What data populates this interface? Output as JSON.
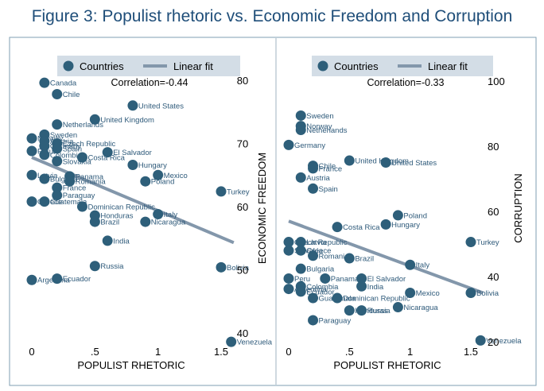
{
  "title": "Figure 3: Populist rhetoric vs. Economic Freedom and Corruption",
  "colors": {
    "marker": "#2e5f7a",
    "fit_line": "#8397ab",
    "legend_bg": "#d3dde6",
    "title": "#1f4e79"
  },
  "chart_data": [
    {
      "type": "scatter",
      "xlabel": "POPULIST RHETORIC",
      "ylabel": "ECONOMIC FREEDOM",
      "xlim": [
        -0.02,
        1.63
      ],
      "ylim": [
        38,
        83
      ],
      "xticks": [
        0,
        0.5,
        1,
        1.5
      ],
      "xtick_labels": [
        "0",
        ".5",
        "1",
        "1.5"
      ],
      "yticks": [
        40,
        50,
        60,
        70,
        80
      ],
      "ytick_labels": [
        "40",
        "50",
        "60",
        "70",
        "80"
      ],
      "legend": {
        "position": "top",
        "entries": [
          "Countries",
          "Linear fit"
        ]
      },
      "annotation": "Correlation=-0.44",
      "fit": {
        "x": [
          0,
          1.6
        ],
        "y": [
          67.8,
          54.3
        ]
      },
      "points": [
        {
          "label": "Canada",
          "x": 0.1,
          "y": 79.6
        },
        {
          "label": "Chile",
          "x": 0.2,
          "y": 77.8
        },
        {
          "label": "United States",
          "x": 0.8,
          "y": 76.0
        },
        {
          "label": "United Kingdom",
          "x": 0.5,
          "y": 73.8
        },
        {
          "label": "Netherlands",
          "x": 0.2,
          "y": 73.0
        },
        {
          "label": "Sweden",
          "x": 0.1,
          "y": 71.4
        },
        {
          "label": "Norway",
          "x": 0.0,
          "y": 70.8
        },
        {
          "label": "Austria",
          "x": 0.1,
          "y": 70.4
        },
        {
          "label": "Czech Republic",
          "x": 0.2,
          "y": 70.0
        },
        {
          "label": "Germany",
          "x": 0.1,
          "y": 69.6
        },
        {
          "label": "Spain",
          "x": 0.2,
          "y": 69.2
        },
        {
          "label": "Peru",
          "x": 0.0,
          "y": 68.8
        },
        {
          "label": "Colombia",
          "x": 0.1,
          "y": 68.2
        },
        {
          "label": "Slovakia",
          "x": 0.2,
          "y": 67.2
        },
        {
          "label": "El Salvador",
          "x": 0.6,
          "y": 68.6
        },
        {
          "label": "Costa Rica",
          "x": 0.4,
          "y": 67.8
        },
        {
          "label": "Hungary",
          "x": 0.8,
          "y": 66.6
        },
        {
          "label": "Mexico",
          "x": 1.0,
          "y": 65.0
        },
        {
          "label": "Poland",
          "x": 0.9,
          "y": 64.0
        },
        {
          "label": "Panama",
          "x": 0.3,
          "y": 64.8
        },
        {
          "label": "Latvia",
          "x": 0.0,
          "y": 65.0
        },
        {
          "label": "Bulgaria",
          "x": 0.1,
          "y": 64.4
        },
        {
          "label": "Romania",
          "x": 0.3,
          "y": 64.0
        },
        {
          "label": "France",
          "x": 0.2,
          "y": 63.0
        },
        {
          "label": "Paraguay",
          "x": 0.2,
          "y": 61.8
        },
        {
          "label": "Turkey",
          "x": 1.5,
          "y": 62.4
        },
        {
          "label": "Greece",
          "x": 0.0,
          "y": 60.8
        },
        {
          "label": "Guatemala",
          "x": 0.1,
          "y": 60.8
        },
        {
          "label": "Dominican Republic",
          "x": 0.4,
          "y": 60.0
        },
        {
          "label": "Honduras",
          "x": 0.5,
          "y": 58.6
        },
        {
          "label": "Italy",
          "x": 1.0,
          "y": 58.8
        },
        {
          "label": "Brazil",
          "x": 0.5,
          "y": 57.6
        },
        {
          "label": "Nicaragua",
          "x": 0.9,
          "y": 57.6
        },
        {
          "label": "India",
          "x": 0.6,
          "y": 54.6
        },
        {
          "label": "Russia",
          "x": 0.5,
          "y": 50.6
        },
        {
          "label": "Bolivia",
          "x": 1.5,
          "y": 50.4
        },
        {
          "label": "Argentina",
          "x": 0.0,
          "y": 48.4
        },
        {
          "label": "Ecuador",
          "x": 0.2,
          "y": 48.6
        },
        {
          "label": "Venezuela",
          "x": 1.58,
          "y": 38.6
        }
      ]
    },
    {
      "type": "scatter",
      "xlabel": "POPULIST RHETORIC",
      "ylabel": "CORRUPTION",
      "xlim": [
        -0.02,
        1.63
      ],
      "ylim": [
        18.5,
        104
      ],
      "xticks": [
        0,
        0.5,
        1,
        1.5
      ],
      "xtick_labels": [
        "0",
        ".5",
        "1",
        "1.5"
      ],
      "yticks": [
        20,
        40,
        60,
        80,
        100
      ],
      "ytick_labels": [
        "20",
        "40",
        "60",
        "80",
        "100"
      ],
      "legend": {
        "position": "top",
        "entries": [
          "Countries",
          "Linear fit"
        ]
      },
      "annotation": "Correlation=-0.33",
      "fit": {
        "x": [
          0,
          1.6
        ],
        "y": [
          57.0,
          35.0
        ]
      },
      "points": [
        {
          "label": "Sweden",
          "x": 0.1,
          "y": 89.4
        },
        {
          "label": "Norway",
          "x": 0.1,
          "y": 86.2
        },
        {
          "label": "Netherlands",
          "x": 0.1,
          "y": 85.0
        },
        {
          "label": "Germany",
          "x": 0.0,
          "y": 80.4
        },
        {
          "label": "United Kingdom",
          "x": 0.5,
          "y": 75.6
        },
        {
          "label": "United States",
          "x": 0.8,
          "y": 75.0
        },
        {
          "label": "Chile",
          "x": 0.2,
          "y": 74.0
        },
        {
          "label": "France",
          "x": 0.2,
          "y": 73.2
        },
        {
          "label": "Austria",
          "x": 0.1,
          "y": 70.4
        },
        {
          "label": "Spain",
          "x": 0.2,
          "y": 67.0
        },
        {
          "label": "Poland",
          "x": 0.9,
          "y": 58.8
        },
        {
          "label": "Hungary",
          "x": 0.8,
          "y": 56.0
        },
        {
          "label": "Costa Rica",
          "x": 0.4,
          "y": 55.2
        },
        {
          "label": "Czech Republic",
          "x": 0.0,
          "y": 50.6
        },
        {
          "label": "Latvia",
          "x": 0.1,
          "y": 50.6
        },
        {
          "label": "Slovakia",
          "x": 0.0,
          "y": 48.0
        },
        {
          "label": "Greece",
          "x": 0.1,
          "y": 48.0
        },
        {
          "label": "Turkey",
          "x": 1.5,
          "y": 50.6
        },
        {
          "label": "Romania",
          "x": 0.2,
          "y": 46.4
        },
        {
          "label": "Brazil",
          "x": 0.5,
          "y": 45.6
        },
        {
          "label": "Italy",
          "x": 1.0,
          "y": 43.6
        },
        {
          "label": "Bulgaria",
          "x": 0.1,
          "y": 42.4
        },
        {
          "label": "Peru",
          "x": 0.0,
          "y": 39.4
        },
        {
          "label": "Panama",
          "x": 0.3,
          "y": 39.4
        },
        {
          "label": "El Salvador",
          "x": 0.6,
          "y": 39.4
        },
        {
          "label": "Colombia",
          "x": 0.1,
          "y": 37.0
        },
        {
          "label": "India",
          "x": 0.6,
          "y": 37.0
        },
        {
          "label": "Argentina",
          "x": 0.0,
          "y": 36.2
        },
        {
          "label": "Ecuador",
          "x": 0.1,
          "y": 35.4
        },
        {
          "label": "Mexico",
          "x": 1.0,
          "y": 35.0
        },
        {
          "label": "Bolivia",
          "x": 1.5,
          "y": 35.0
        },
        {
          "label": "Guatemala",
          "x": 0.2,
          "y": 33.4
        },
        {
          "label": "Dominican Republic",
          "x": 0.4,
          "y": 33.4
        },
        {
          "label": "Nicaragua",
          "x": 0.9,
          "y": 30.6
        },
        {
          "label": "Honduras",
          "x": 0.5,
          "y": 29.6
        },
        {
          "label": "Russia",
          "x": 0.6,
          "y": 29.6
        },
        {
          "label": "Paraguay",
          "x": 0.2,
          "y": 26.6
        },
        {
          "label": "Venezuela",
          "x": 1.58,
          "y": 20.4
        }
      ]
    }
  ]
}
